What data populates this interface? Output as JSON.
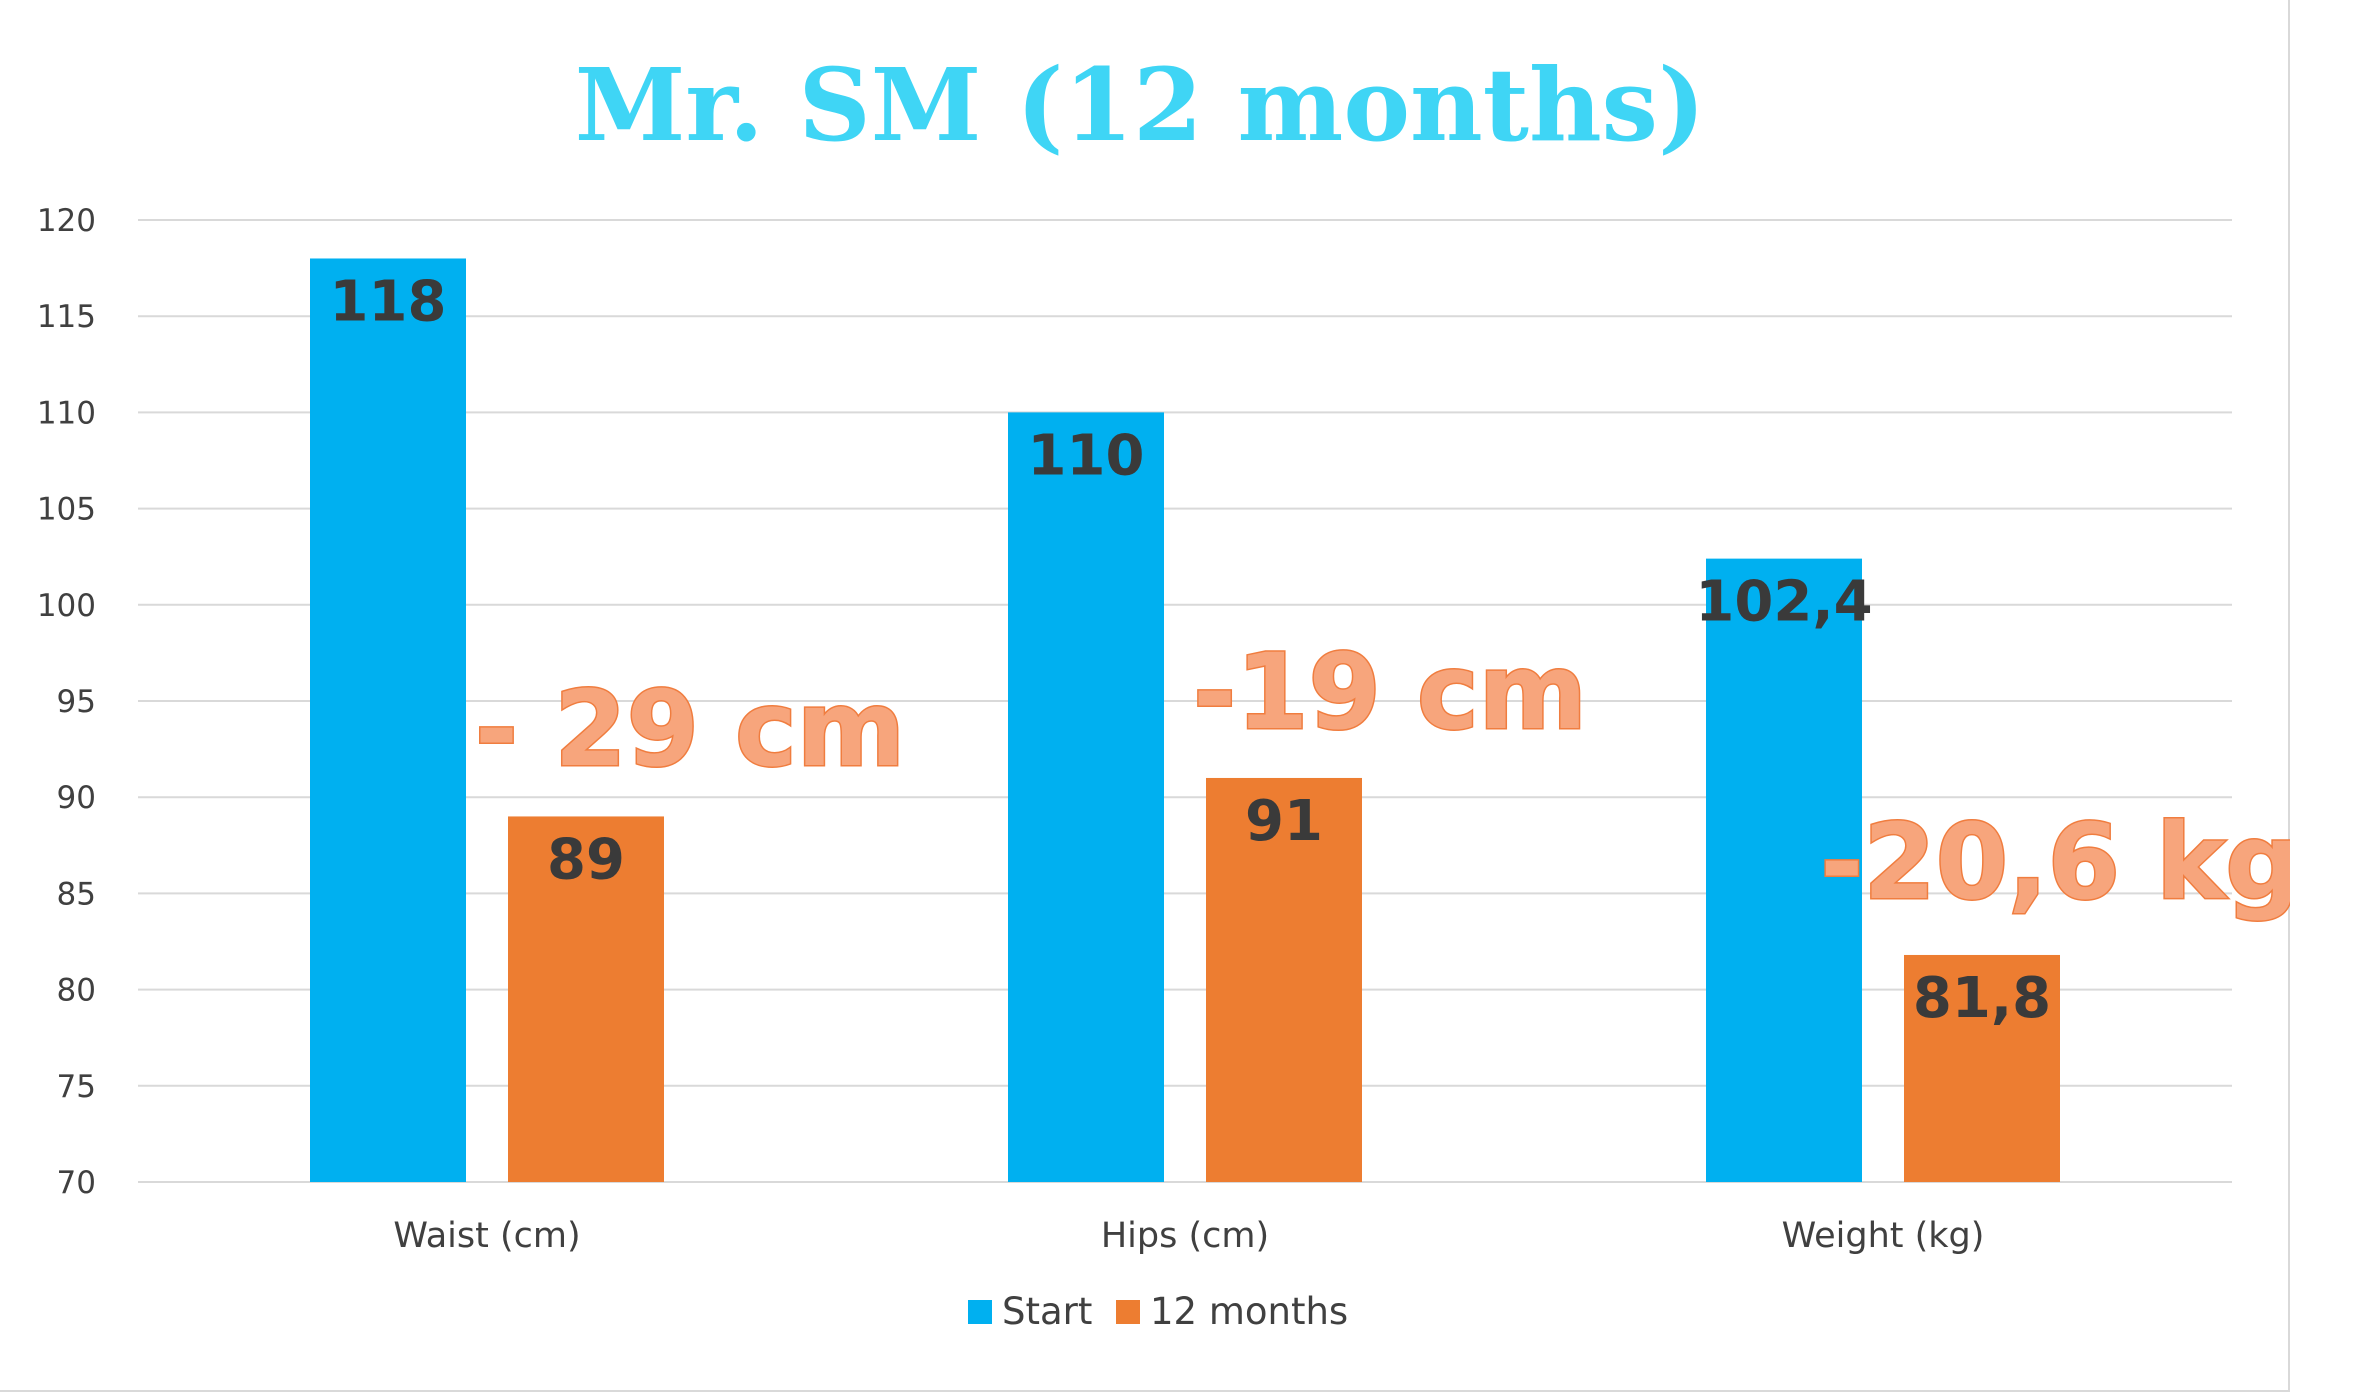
{
  "chart_data": {
    "type": "bar",
    "title": "Mr. SM (12 months)",
    "categories": [
      "Waist (cm)",
      "Hips (cm)",
      "Weight (kg)"
    ],
    "series": [
      {
        "name": "Start",
        "color": "#00b0f0",
        "values": [
          118,
          110,
          102.4
        ],
        "labels": [
          "118",
          "110",
          "102,4"
        ]
      },
      {
        "name": "12 months",
        "color": "#ed7d31",
        "values": [
          89,
          91,
          81.8
        ],
        "labels": [
          "89",
          "91",
          "81,8"
        ]
      }
    ],
    "ylim": [
      70,
      120
    ],
    "yticks": [
      70,
      75,
      80,
      85,
      90,
      95,
      100,
      105,
      110,
      115,
      120
    ],
    "grid": true,
    "legend_position": "bottom",
    "annotations": [
      "- 29 cm",
      "-19 cm",
      "-20,6 kg"
    ]
  }
}
